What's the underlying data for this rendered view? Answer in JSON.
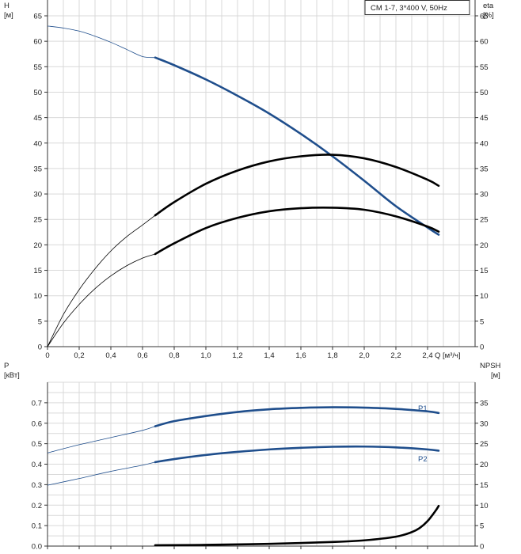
{
  "chart_data": [
    {
      "type": "line",
      "legend_label": "CM 1-7, 3*400 V, 50Hz",
      "left_axis_label": [
        "H",
        "[м]"
      ],
      "right_axis_label": [
        "eta",
        "[%]"
      ],
      "x_axis_label": "Q [м³/ч]",
      "x_ticks": [
        "0",
        "0,2",
        "0,4",
        "0,6",
        "0,8",
        "1,0",
        "1,2",
        "1,4",
        "1,6",
        "1,8",
        "2,0",
        "2,2",
        "2,4"
      ],
      "y_ticks": [
        "0",
        "5",
        "10",
        "15",
        "20",
        "25",
        "30",
        "35",
        "40",
        "45",
        "50",
        "55",
        "60",
        "65"
      ],
      "xlim": [
        0,
        2.7
      ],
      "ylim": [
        0,
        65
      ],
      "grid": true,
      "series": [
        {
          "kind": "head",
          "color": "#1f4e8c",
          "thin_x": [
            0,
            0.1,
            0.2,
            0.3,
            0.4,
            0.5,
            0.6,
            0.68
          ],
          "thin_y": [
            63,
            62.6,
            62.0,
            61.0,
            59.8,
            58.4,
            57.0,
            56.8
          ],
          "thick_x": [
            0.68,
            0.8,
            1.0,
            1.2,
            1.4,
            1.6,
            1.8,
            2.0,
            2.2,
            2.4,
            2.47
          ],
          "thick_y": [
            56.8,
            55.3,
            52.5,
            49.3,
            45.8,
            41.8,
            37.4,
            32.6,
            27.6,
            23.4,
            22.0
          ]
        },
        {
          "kind": "efficiency",
          "color": "#000000",
          "thin_x": [
            0,
            0.1,
            0.2,
            0.3,
            0.4,
            0.5,
            0.6,
            0.68
          ],
          "thin_y": [
            0,
            6.3,
            11.2,
            15.3,
            18.8,
            21.6,
            23.9,
            25.8
          ],
          "thick_x": [
            0.68,
            0.8,
            1.0,
            1.2,
            1.4,
            1.6,
            1.8,
            2.0,
            2.2,
            2.4,
            2.47
          ],
          "thick_y": [
            25.8,
            28.4,
            32.0,
            34.6,
            36.4,
            37.4,
            37.7,
            37.0,
            35.3,
            32.8,
            31.6
          ]
        },
        {
          "kind": "efficiency",
          "color": "#000000",
          "thin_x": [
            0,
            0.1,
            0.2,
            0.3,
            0.4,
            0.5,
            0.6,
            0.68
          ],
          "thin_y": [
            0,
            4.6,
            8.3,
            11.4,
            13.9,
            15.9,
            17.4,
            18.2
          ],
          "thick_x": [
            0.68,
            0.8,
            1.0,
            1.2,
            1.4,
            1.6,
            1.8,
            2.0,
            2.2,
            2.4,
            2.47
          ],
          "thick_y": [
            18.2,
            20.3,
            23.3,
            25.3,
            26.6,
            27.2,
            27.3,
            26.9,
            25.6,
            23.6,
            22.6
          ]
        }
      ]
    },
    {
      "type": "line",
      "left_axis_label": [
        "P",
        "[кВт]"
      ],
      "right_axis_label": [
        "NPSH",
        "[м]"
      ],
      "y_ticks": [
        "0.0",
        "0.1",
        "0.2",
        "0.3",
        "0.4",
        "0.5",
        "0.6",
        "0.7"
      ],
      "y2_ticks": [
        "0",
        "5",
        "10",
        "15",
        "20",
        "25",
        "30",
        "35"
      ],
      "xlim": [
        0,
        2.7
      ],
      "ylim": [
        0,
        0.8
      ],
      "y2lim": [
        0,
        40
      ],
      "grid": true,
      "series": [
        {
          "name": "P1",
          "color": "#1f4e8c",
          "thin_x": [
            0,
            0.2,
            0.4,
            0.6,
            0.68
          ],
          "thin_y": [
            0.455,
            0.495,
            0.53,
            0.565,
            0.585
          ],
          "thick_x": [
            0.68,
            0.8,
            1.0,
            1.2,
            1.4,
            1.6,
            1.8,
            2.0,
            2.2,
            2.4,
            2.47
          ],
          "thick_y": [
            0.585,
            0.61,
            0.635,
            0.655,
            0.668,
            0.675,
            0.678,
            0.676,
            0.67,
            0.658,
            0.65
          ]
        },
        {
          "name": "P2",
          "color": "#1f4e8c",
          "thin_x": [
            0,
            0.2,
            0.4,
            0.6,
            0.68
          ],
          "thin_y": [
            0.297,
            0.33,
            0.365,
            0.395,
            0.41
          ],
          "thick_x": [
            0.68,
            0.8,
            1.0,
            1.2,
            1.4,
            1.6,
            1.8,
            2.0,
            2.2,
            2.4,
            2.47
          ],
          "thick_y": [
            0.41,
            0.425,
            0.445,
            0.46,
            0.472,
            0.48,
            0.485,
            0.486,
            0.482,
            0.472,
            0.466
          ],
          "thin_width": true
        },
        {
          "kind": "npsh",
          "color": "#000000",
          "axis": "right",
          "thick_x": [
            0.68,
            1.0,
            1.4,
            1.8,
            2.0,
            2.2,
            2.3,
            2.35,
            2.4,
            2.45,
            2.47
          ],
          "thick_y": [
            0.2,
            0.3,
            0.55,
            1.0,
            1.4,
            2.3,
            3.4,
            4.4,
            6.1,
            8.6,
            9.8
          ]
        }
      ]
    }
  ]
}
